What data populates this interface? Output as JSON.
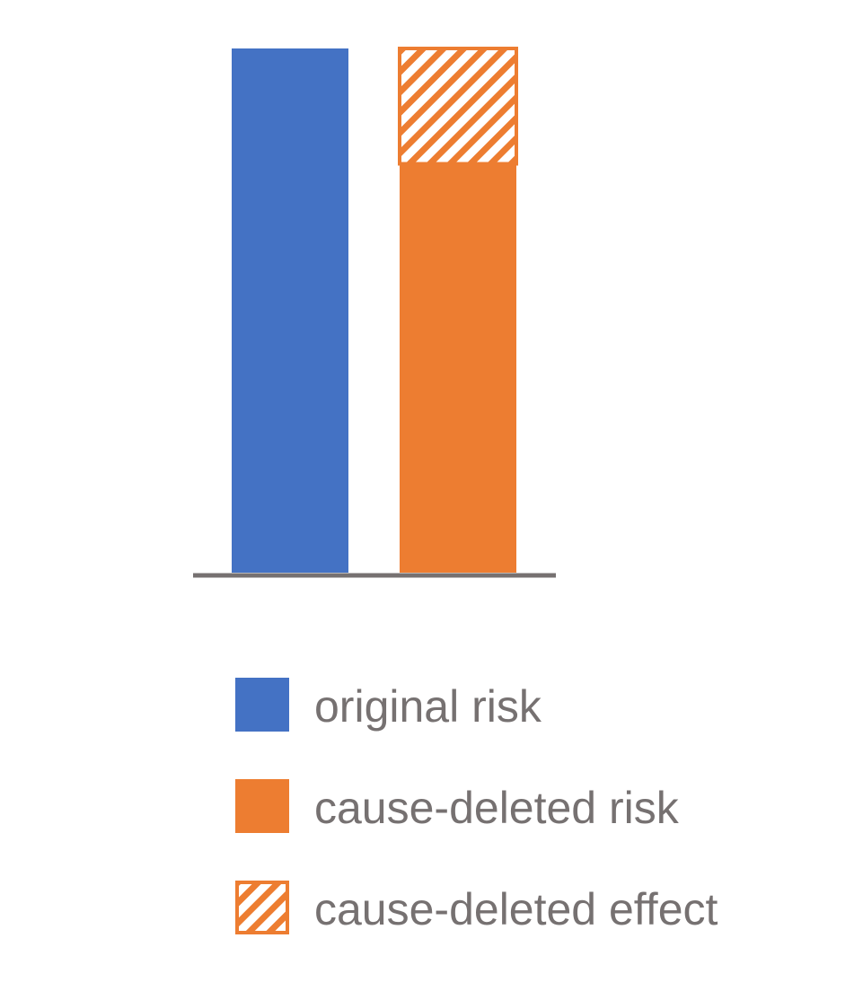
{
  "colors": {
    "original": "#4472C4",
    "cause_deleted": "#ED7D31",
    "axis": "#767171",
    "text": "#767171"
  },
  "chart_data": {
    "type": "bar",
    "stacked": true,
    "grid": false,
    "legend_position": "bottom",
    "categories": [
      "",
      ""
    ],
    "ylim": [
      0,
      1
    ],
    "series": [
      {
        "name": "original risk",
        "values": [
          1.0,
          0
        ],
        "color": "#4472C4",
        "pattern": "solid"
      },
      {
        "name": "cause-deleted risk",
        "values": [
          0,
          0.78
        ],
        "color": "#ED7D31",
        "pattern": "solid"
      },
      {
        "name": "cause-deleted effect",
        "values": [
          0,
          0.22
        ],
        "color": "#ED7D31",
        "pattern": "hatched"
      }
    ]
  },
  "legend": {
    "items": [
      {
        "label": "original risk",
        "icon": "solid-blue-swatch"
      },
      {
        "label": "cause-deleted risk",
        "icon": "solid-orange-swatch"
      },
      {
        "label": "cause-deleted effect",
        "icon": "hatched-orange-swatch"
      }
    ]
  }
}
